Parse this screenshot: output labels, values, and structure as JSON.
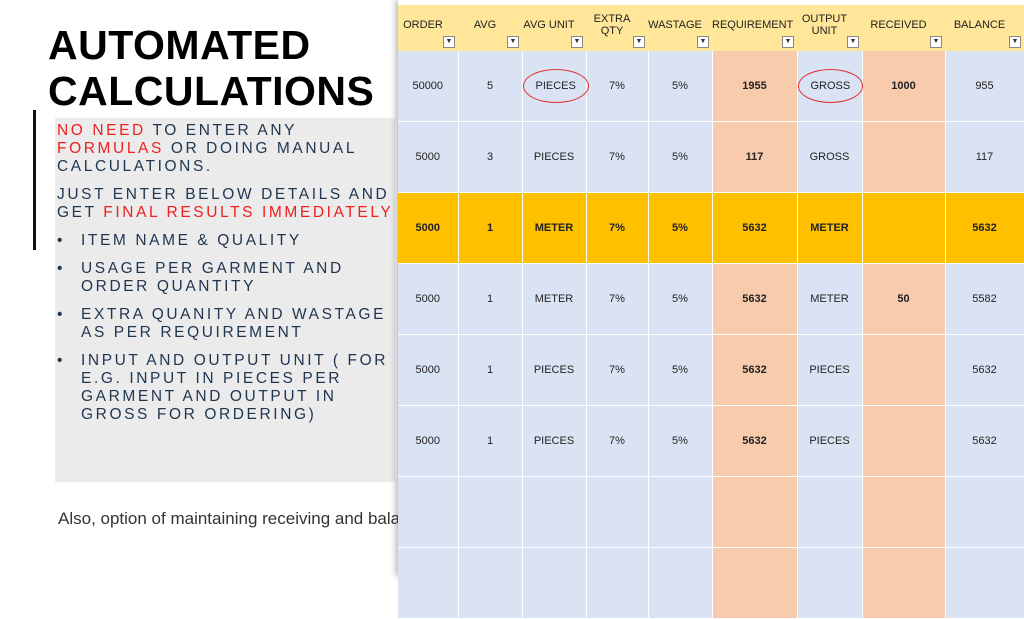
{
  "title": [
    "AUTOMATED",
    "CALCULATIONS"
  ],
  "intro1": {
    "a": "NO NEED",
    "b": " TO ENTER ANY ",
    "c": "FORMULAS",
    "d": " OR DOING MANUAL CALCULATIONS."
  },
  "intro2": {
    "a": "JUST ENTER BELOW DETAILS AND GET ",
    "b": "FINAL RESULTS IMMEDIATELY"
  },
  "bullets": [
    "ITEM NAME & QUALITY",
    "USAGE PER GARMENT AND ORDER QUANTITY",
    "EXTRA QUANITY AND WASTAGE AS PER REQUIREMENT",
    "INPUT AND OUTPUT UNIT ( FOR E.G. INPUT IN PIECES PER GARMENT AND OUTPUT IN GROSS FOR ORDERING)"
  ],
  "footer": "Also, option of maintaining receiving and balance records",
  "colors": {
    "header": "#ffe699",
    "cell": "#dae3f3",
    "peach": "#f8cbad",
    "highlight": "#ffc000",
    "accent_red": "#f01e1e"
  },
  "table": {
    "headers": [
      "ORDER",
      "AVG",
      "AVG UNIT",
      "EXTRA QTY",
      "WASTAGE",
      "REQUIREMENT",
      "OUTPUT UNIT",
      "RECEIVED",
      "BALANCE"
    ],
    "rows": [
      [
        "50000",
        "5",
        "PIECES",
        "7%",
        "5%",
        "1955",
        "GROSS",
        "1000",
        "955"
      ],
      [
        "5000",
        "3",
        "PIECES",
        "7%",
        "5%",
        "117",
        "GROSS",
        "",
        "117"
      ],
      [
        "5000",
        "1",
        "METER",
        "7%",
        "5%",
        "5632",
        "METER",
        "",
        "5632"
      ],
      [
        "5000",
        "1",
        "METER",
        "7%",
        "5%",
        "5632",
        "METER",
        "50",
        "5582"
      ],
      [
        "5000",
        "1",
        "PIECES",
        "7%",
        "5%",
        "5632",
        "PIECES",
        "",
        "5632"
      ],
      [
        "5000",
        "1",
        "PIECES",
        "7%",
        "5%",
        "5632",
        "PIECES",
        "",
        "5632"
      ],
      [
        "",
        "",
        "",
        "",
        "",
        "",
        "",
        "",
        ""
      ],
      [
        "",
        "",
        "",
        "",
        "",
        "",
        "",
        "",
        ""
      ]
    ],
    "highlight_row": 2,
    "circled": [
      [
        0,
        2
      ],
      [
        0,
        6
      ]
    ]
  }
}
